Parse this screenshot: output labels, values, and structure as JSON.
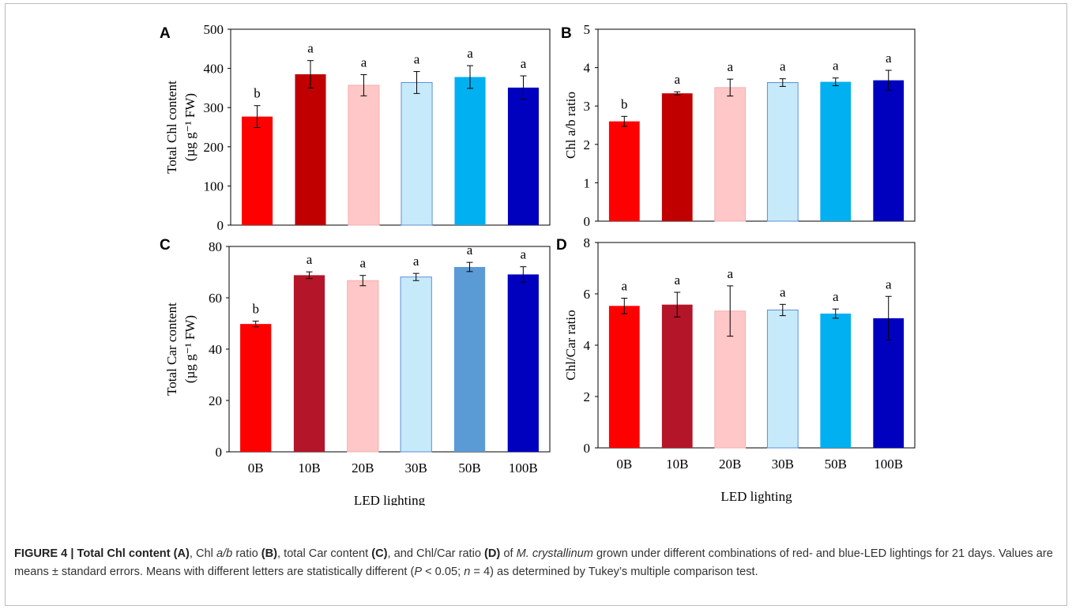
{
  "chart_data": [
    {
      "panel": "A",
      "type": "bar",
      "categories": [
        "0B",
        "10B",
        "20B",
        "30B",
        "50B",
        "100B"
      ],
      "values": [
        277,
        385,
        357,
        364,
        378,
        351
      ],
      "errors": [
        28,
        35,
        27,
        28,
        29,
        30
      ],
      "letters": [
        "b",
        "a",
        "a",
        "a",
        "a",
        "a"
      ],
      "colors": [
        "#ff0000",
        "#c00000",
        "#ffc7c7",
        "#c7eafb",
        "#00b0f0",
        "#0000bf"
      ],
      "ylabel_line1": "Total Chl content",
      "ylabel_line2": "(µg g⁻¹ FW)",
      "xlabel": "",
      "ylim": [
        0,
        500
      ],
      "yticks": [
        0,
        100,
        200,
        300,
        400,
        500
      ]
    },
    {
      "panel": "B",
      "type": "bar",
      "categories": [
        "0B",
        "10B",
        "20B",
        "30B",
        "50B",
        "100B"
      ],
      "values": [
        2.6,
        3.33,
        3.48,
        3.61,
        3.63,
        3.67
      ],
      "errors": [
        0.13,
        0.04,
        0.22,
        0.1,
        0.1,
        0.26
      ],
      "letters": [
        "b",
        "a",
        "a",
        "a",
        "a",
        "a"
      ],
      "colors": [
        "#ff0000",
        "#c00000",
        "#ffc7c7",
        "#c7eafb",
        "#00b0f0",
        "#0000bf"
      ],
      "ylabel_line1": "Chl a/b ratio",
      "ylabel_line2": "",
      "xlabel": "",
      "ylim": [
        0,
        5
      ],
      "yticks": [
        0,
        1,
        2,
        3,
        4,
        5
      ]
    },
    {
      "panel": "C",
      "type": "bar",
      "categories": [
        "0B",
        "10B",
        "20B",
        "30B",
        "50B",
        "100B"
      ],
      "values": [
        49.8,
        68.8,
        66.7,
        68.1,
        72.0,
        69.1
      ],
      "errors": [
        1.1,
        1.3,
        2.0,
        1.4,
        1.8,
        3.0
      ],
      "letters": [
        "b",
        "a",
        "a",
        "a",
        "a",
        "a"
      ],
      "colors": [
        "#ff0000",
        "#b41528",
        "#ffc7c7",
        "#c7eafb",
        "#5b9bd5",
        "#0000bf"
      ],
      "ylabel_line1": "Total Car  content",
      "ylabel_line2": "(µg g⁻¹ FW)",
      "xlabel": "LED lighting",
      "ylim": [
        0,
        80
      ],
      "yticks": [
        0,
        20,
        40,
        60,
        80
      ]
    },
    {
      "panel": "D",
      "type": "bar",
      "categories": [
        "0B",
        "10B",
        "20B",
        "30B",
        "50B",
        "100B"
      ],
      "values": [
        5.53,
        5.58,
        5.33,
        5.37,
        5.23,
        5.05
      ],
      "errors": [
        0.3,
        0.48,
        0.98,
        0.22,
        0.18,
        0.85
      ],
      "letters": [
        "a",
        "a",
        "a",
        "a",
        "a",
        "a"
      ],
      "colors": [
        "#ff0000",
        "#b41528",
        "#ffc7c7",
        "#c7eafb",
        "#00b0f0",
        "#0000bf"
      ],
      "ylabel_line1": "Chl/Car ratio",
      "ylabel_line2": "",
      "xlabel": "LED lighting",
      "ylim": [
        0,
        8
      ],
      "yticks": [
        0,
        2,
        4,
        6,
        8
      ]
    }
  ],
  "caption": {
    "figure_label": "FIGURE 4 | Total Chl content (A)",
    "t1": ", Chl ",
    "t1i": "a/b",
    "t2": " ratio ",
    "t2b": "(B)",
    "t3": ", total Car content ",
    "t3b": "(C)",
    "t4": ", and Chl/Car ratio ",
    "t4b": "(D)",
    "t5": " of ",
    "t5i": "M. crystallinum",
    "t6": " grown under different combinations of red- and blue-LED lightings for 21 days. Values are means ± standard errors. Means with different letters are statistically different (",
    "t6i1": "P",
    "t7": " < 0.05; ",
    "t7i": "n",
    "t8": " = 4) as determined by Tukey’s multiple comparison test."
  }
}
